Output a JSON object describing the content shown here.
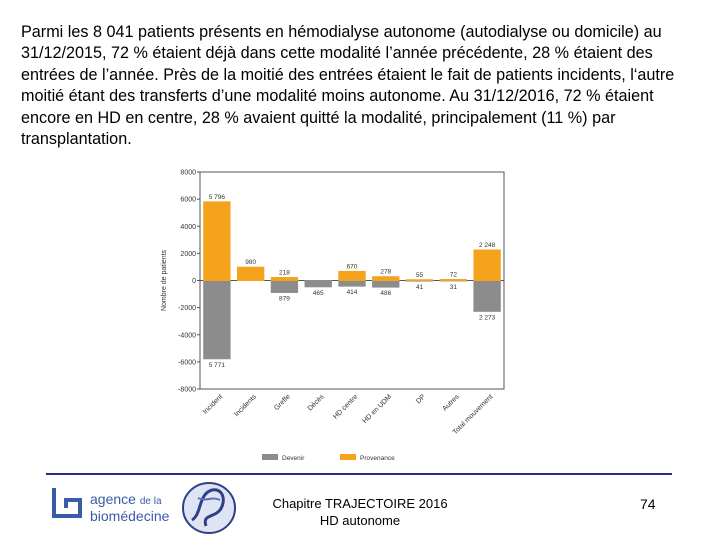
{
  "paragraph": "Parmi les 8 041 patients présents en hémodialyse autonome (autodialyse ou domicile) au 31/12/2015, 72 % étaient déjà dans cette modalité l’année précédente, 28 % étaient des entrées de l’année. Près de la moitié des entrées étaient le fait de patients incidents, l‘autre moitié étant des transferts d’une modalité moins autonome. Au 31/12/2016, 72 % étaient encore en HD en centre, 28 % avaient quitté la modalité, principalement (11 %) par transplantation.",
  "chart_data": {
    "type": "bar",
    "ylabel": "Nombre de patients",
    "ylim": [
      -8000,
      8000
    ],
    "yticks": [
      8000,
      6000,
      4000,
      2000,
      0,
      -2000,
      -4000,
      -6000,
      -8000
    ],
    "ytick_labels": [
      "8000",
      "6000",
      "4000",
      "2000",
      "0",
      "-2000",
      "-4000",
      "-6000",
      "-8000"
    ],
    "categories": [
      "Incident",
      "Incidents",
      "Greffe",
      "Décès",
      "HD centre",
      "HD en UDM",
      "DP",
      "Autres",
      "Total mouvement"
    ],
    "series": [
      {
        "name": "Devenir",
        "color": "#8c8c8c",
        "values": [
          -5771,
          null,
          -879,
          -465,
          -414,
          -486,
          -41,
          -31,
          -2273
        ],
        "labels": [
          "5 771",
          "",
          "879",
          "465",
          "414",
          "486",
          "41",
          "31",
          "2 273"
        ]
      },
      {
        "name": "Provenance",
        "color": "#f5a21c",
        "values": [
          5796,
          980,
          218,
          null,
          670,
          278,
          55,
          72,
          2248
        ],
        "labels": [
          "5 796",
          "980",
          "218",
          "",
          "670",
          "278",
          "55",
          "72",
          "2 248"
        ]
      }
    ],
    "legend": {
      "position": "bottom",
      "entries": [
        "Devenir",
        "Provenance"
      ]
    }
  },
  "footer": {
    "logo_name": "agence de la biomédecine",
    "title_line1": "Chapitre TRAJECTOIRE 2016",
    "title_line2": "HD autonome",
    "page_number": "74"
  },
  "colors": {
    "devenir": "#8c8c8c",
    "provenance": "#f5a21c",
    "divider": "#2a2a8a",
    "logo": "#3a5ba8"
  }
}
